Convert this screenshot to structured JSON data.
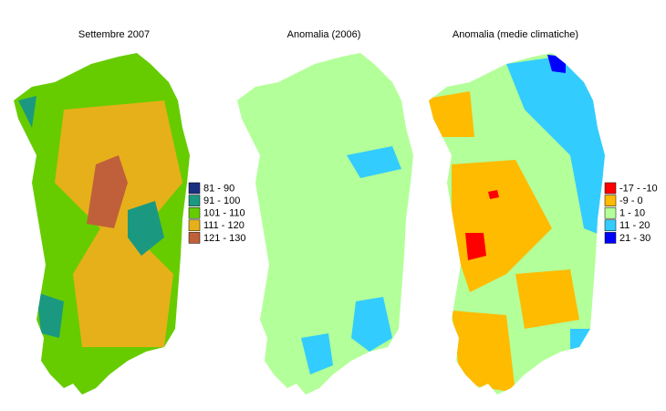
{
  "maps": [
    {
      "title": "Settembre 2007",
      "legend": [
        {
          "label": "81 - 90",
          "color": "#1a2f80"
        },
        {
          "label": "91 - 100",
          "color": "#1a9980"
        },
        {
          "label": "101 - 110",
          "color": "#66cc00"
        },
        {
          "label": "111 - 120",
          "color": "#e6b01a"
        },
        {
          "label": "121 - 130",
          "color": "#c0603a"
        }
      ]
    },
    {
      "title": "Anomalia (2006)",
      "legend": []
    },
    {
      "title": "Anomalia (medie climatiche)",
      "legend": [
        {
          "label": "-17 - -10",
          "color": "#ff0000"
        },
        {
          "label": "-9 - 0",
          "color": "#ffbb00"
        },
        {
          "label": "1 - 10",
          "color": "#b3ff99"
        },
        {
          "label": "11 - 20",
          "color": "#33ccff"
        },
        {
          "label": "21 - 30",
          "color": "#0000ff"
        }
      ]
    }
  ]
}
